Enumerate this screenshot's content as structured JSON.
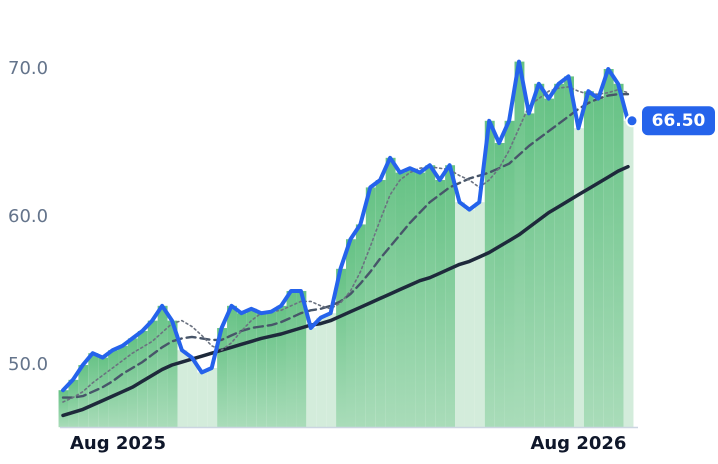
{
  "chart_data": {
    "type": "line",
    "categories": [
      "Aug 2025",
      null,
      null,
      null,
      null,
      null,
      null,
      null,
      null,
      null,
      null,
      null,
      null,
      null,
      null,
      null,
      null,
      null,
      null,
      null,
      null,
      null,
      null,
      null,
      null,
      null,
      null,
      null,
      null,
      null,
      null,
      null,
      null,
      null,
      null,
      null,
      null,
      null,
      null,
      null,
      null,
      null,
      null,
      null,
      null,
      null,
      null,
      null,
      null,
      null,
      null,
      null,
      "Aug 2026",
      null,
      null,
      null,
      null,
      null
    ],
    "series": [
      {
        "color": "#2563eb",
        "style": "solid",
        "width": 4,
        "values": [
          48.3,
          49.0,
          50.0,
          50.8,
          50.5,
          51.0,
          51.3,
          51.8,
          52.3,
          53.0,
          54.0,
          53.0,
          51.0,
          50.5,
          49.5,
          49.8,
          52.5,
          54.0,
          53.5,
          53.8,
          53.5,
          53.6,
          54.0,
          55.0,
          55.0,
          52.5,
          53.2,
          53.5,
          56.5,
          58.5,
          59.5,
          62.0,
          62.5,
          64.0,
          63.0,
          63.3,
          63.0,
          63.5,
          62.5,
          63.5,
          61.0,
          60.5,
          61.0,
          66.5,
          65.0,
          66.5,
          70.5,
          67.0,
          69.0,
          68.0,
          69.0,
          69.5,
          66.0,
          68.5,
          68.0,
          70.0,
          69.0,
          66.5
        ],
        "value_labels": [
          null,
          null,
          null,
          null,
          null,
          null,
          null,
          null,
          null,
          null,
          null,
          null,
          null,
          null,
          null,
          null,
          null,
          null,
          null,
          null,
          null,
          null,
          null,
          null,
          null,
          null,
          null,
          null,
          null,
          null,
          null,
          null,
          null,
          null,
          null,
          null,
          null,
          null,
          null,
          null,
          null,
          null,
          null,
          null,
          null,
          null,
          null,
          null,
          null,
          null,
          null,
          null,
          null,
          null,
          null,
          null,
          null,
          "66.50"
        ]
      },
      {
        "color": "#6b7280",
        "style": "dotted",
        "width": 1.6,
        "values": [
          47.5,
          47.8,
          48.2,
          48.8,
          49.3,
          49.8,
          50.3,
          50.8,
          51.2,
          51.6,
          52.2,
          52.8,
          53.0,
          52.6,
          52.0,
          51.3,
          51.0,
          51.5,
          52.3,
          53.0,
          53.5,
          53.6,
          53.7,
          54.0,
          54.3,
          54.3,
          54.0,
          53.8,
          54.2,
          55.0,
          56.3,
          58.0,
          59.8,
          61.5,
          62.5,
          63.0,
          63.3,
          63.4,
          63.3,
          63.2,
          62.8,
          62.5,
          62.0,
          62.5,
          63.3,
          64.5,
          66.0,
          67.5,
          68.0,
          68.5,
          68.7,
          68.8,
          68.5,
          68.3,
          68.3,
          68.4,
          68.6,
          68.4
        ]
      },
      {
        "color": "#475569",
        "style": "dashed",
        "width": 2.4,
        "values": [
          47.8,
          47.8,
          47.9,
          48.2,
          48.5,
          48.9,
          49.4,
          49.8,
          50.2,
          50.7,
          51.2,
          51.6,
          51.8,
          51.9,
          51.8,
          51.7,
          51.7,
          52.0,
          52.3,
          52.5,
          52.6,
          52.7,
          52.9,
          53.2,
          53.5,
          53.7,
          53.8,
          54.0,
          54.3,
          54.8,
          55.5,
          56.3,
          57.2,
          58.0,
          58.8,
          59.6,
          60.3,
          61.0,
          61.5,
          62.0,
          62.3,
          62.6,
          62.8,
          63.0,
          63.3,
          63.6,
          64.2,
          64.8,
          65.3,
          65.8,
          66.3,
          66.8,
          67.3,
          67.7,
          68.0,
          68.2,
          68.3,
          68.3
        ]
      },
      {
        "color": "#1e293b",
        "style": "solid",
        "width": 3.5,
        "values": [
          46.6,
          46.8,
          47.0,
          47.3,
          47.6,
          47.9,
          48.2,
          48.5,
          48.9,
          49.3,
          49.7,
          50.0,
          50.2,
          50.4,
          50.6,
          50.8,
          51.0,
          51.2,
          51.4,
          51.6,
          51.8,
          51.95,
          52.1,
          52.3,
          52.5,
          52.7,
          52.8,
          53.0,
          53.3,
          53.6,
          53.9,
          54.2,
          54.5,
          54.8,
          55.1,
          55.4,
          55.7,
          55.9,
          56.2,
          56.5,
          56.8,
          57.0,
          57.3,
          57.6,
          58.0,
          58.4,
          58.8,
          59.3,
          59.8,
          60.3,
          60.7,
          61.1,
          61.5,
          61.9,
          62.3,
          62.7,
          63.1,
          63.4
        ]
      }
    ],
    "ylim": [
      45.8,
      72
    ],
    "yticks": [
      {
        "value": 50,
        "label": "50.0"
      },
      {
        "value": 60,
        "label": "60.0"
      },
      {
        "value": 70,
        "label": "70.0"
      }
    ]
  }
}
